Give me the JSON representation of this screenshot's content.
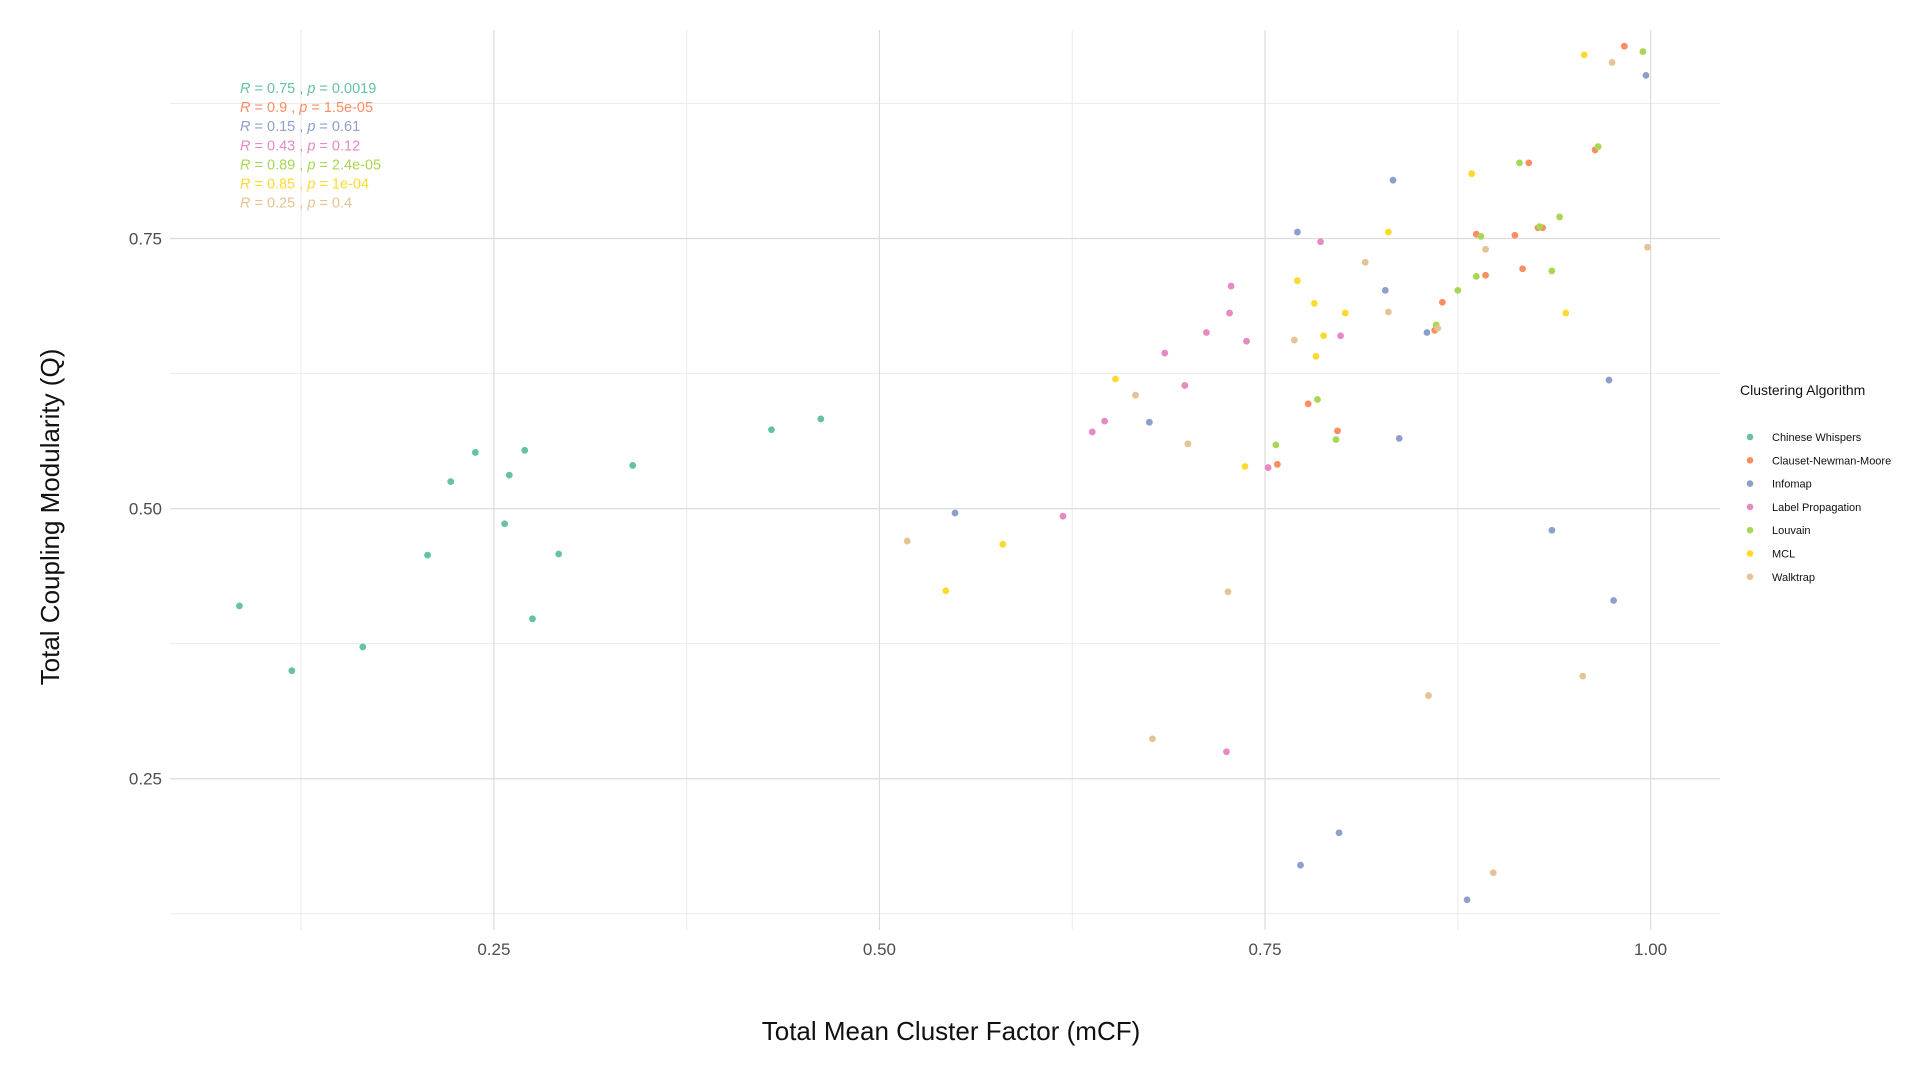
{
  "chart_data": {
    "type": "scatter",
    "title": "",
    "xlabel": "Total Mean Cluster Factor (mCF)",
    "ylabel": "Total Coupling Modularity (Q)",
    "xlim": [
      0.04,
      1.045
    ],
    "ylim": [
      0.11,
      0.943
    ],
    "x_ticks": [
      0.25,
      0.5,
      0.75,
      1.0
    ],
    "x_tick_labels": [
      "0.25",
      "0.50",
      "0.75",
      "1.00"
    ],
    "y_ticks": [
      0.25,
      0.5,
      0.75
    ],
    "y_tick_labels": [
      "0.25",
      "0.50",
      "0.75"
    ],
    "grid": true,
    "legend": {
      "title": "Clustering Algorithm",
      "placement": "right"
    },
    "correlations": [
      {
        "R": "0.75",
        "p": "0.0019"
      },
      {
        "R": "0.9",
        "p": "1.5e-05"
      },
      {
        "R": "0.15",
        "p": "0.61"
      },
      {
        "R": "0.43",
        "p": "0.12"
      },
      {
        "R": "0.89",
        "p": "2.4e-05"
      },
      {
        "R": "0.85",
        "p": "1e-04"
      },
      {
        "R": "0.25",
        "p": "0.4"
      }
    ],
    "series": [
      {
        "name": "Chinese Whispers",
        "color": "#66c2a5",
        "points": [
          [
            0.085,
            0.41
          ],
          [
            0.119,
            0.35
          ],
          [
            0.165,
            0.372
          ],
          [
            0.207,
            0.457
          ],
          [
            0.222,
            0.525
          ],
          [
            0.238,
            0.552
          ],
          [
            0.257,
            0.486
          ],
          [
            0.26,
            0.531
          ],
          [
            0.27,
            0.554
          ],
          [
            0.275,
            0.398
          ],
          [
            0.292,
            0.458
          ],
          [
            0.34,
            0.54
          ],
          [
            0.43,
            0.573
          ],
          [
            0.462,
            0.583
          ]
        ]
      },
      {
        "name": "Clauset-Newman-Moore",
        "color": "#fc8d62",
        "points": [
          [
            0.983,
            0.928
          ],
          [
            0.964,
            0.832
          ],
          [
            0.921,
            0.82
          ],
          [
            0.927,
            0.76
          ],
          [
            0.93,
            0.76
          ],
          [
            0.912,
            0.753
          ],
          [
            0.887,
            0.754
          ],
          [
            0.917,
            0.722
          ],
          [
            0.893,
            0.716
          ],
          [
            0.865,
            0.691
          ],
          [
            0.86,
            0.665
          ],
          [
            0.778,
            0.597
          ],
          [
            0.797,
            0.572
          ],
          [
            0.758,
            0.541
          ]
        ]
      },
      {
        "name": "Infomap",
        "color": "#8da0cb",
        "points": [
          [
            0.997,
            0.901
          ],
          [
            0.833,
            0.804
          ],
          [
            0.771,
            0.756
          ],
          [
            0.828,
            0.702
          ],
          [
            0.855,
            0.663
          ],
          [
            0.973,
            0.619
          ],
          [
            0.837,
            0.565
          ],
          [
            0.675,
            0.58
          ],
          [
            0.549,
            0.496
          ],
          [
            0.936,
            0.48
          ],
          [
            0.976,
            0.415
          ],
          [
            0.798,
            0.2
          ],
          [
            0.773,
            0.17
          ],
          [
            0.881,
            0.138
          ]
        ]
      },
      {
        "name": "Label Propagation",
        "color": "#e78ac3",
        "points": [
          [
            0.786,
            0.747
          ],
          [
            0.728,
            0.706
          ],
          [
            0.727,
            0.681
          ],
          [
            0.712,
            0.663
          ],
          [
            0.738,
            0.655
          ],
          [
            0.799,
            0.66
          ],
          [
            0.685,
            0.644
          ],
          [
            0.698,
            0.614
          ],
          [
            0.646,
            0.581
          ],
          [
            0.638,
            0.571
          ],
          [
            0.752,
            0.538
          ],
          [
            0.619,
            0.493
          ],
          [
            0.725,
            0.275
          ]
        ]
      },
      {
        "name": "Louvain",
        "color": "#a6d854",
        "points": [
          [
            0.995,
            0.923
          ],
          [
            0.966,
            0.835
          ],
          [
            0.915,
            0.82
          ],
          [
            0.941,
            0.77
          ],
          [
            0.928,
            0.761
          ],
          [
            0.89,
            0.752
          ],
          [
            0.936,
            0.72
          ],
          [
            0.887,
            0.715
          ],
          [
            0.875,
            0.702
          ],
          [
            0.861,
            0.67
          ],
          [
            0.784,
            0.601
          ],
          [
            0.796,
            0.564
          ],
          [
            0.757,
            0.559
          ]
        ]
      },
      {
        "name": "MCL",
        "color": "#ffd92f",
        "points": [
          [
            0.957,
            0.92
          ],
          [
            0.884,
            0.81
          ],
          [
            0.83,
            0.756
          ],
          [
            0.771,
            0.711
          ],
          [
            0.782,
            0.69
          ],
          [
            0.802,
            0.681
          ],
          [
            0.945,
            0.681
          ],
          [
            0.788,
            0.66
          ],
          [
            0.783,
            0.641
          ],
          [
            0.653,
            0.62
          ],
          [
            0.737,
            0.539
          ],
          [
            0.58,
            0.467
          ],
          [
            0.543,
            0.424
          ]
        ]
      },
      {
        "name": "Walktrap",
        "color": "#e5c494",
        "points": [
          [
            0.975,
            0.913
          ],
          [
            0.998,
            0.742
          ],
          [
            0.893,
            0.74
          ],
          [
            0.815,
            0.728
          ],
          [
            0.83,
            0.682
          ],
          [
            0.862,
            0.667
          ],
          [
            0.769,
            0.656
          ],
          [
            0.666,
            0.605
          ],
          [
            0.7,
            0.56
          ],
          [
            0.518,
            0.47
          ],
          [
            0.726,
            0.423
          ],
          [
            0.956,
            0.345
          ],
          [
            0.856,
            0.327
          ],
          [
            0.677,
            0.287
          ],
          [
            0.898,
            0.163
          ]
        ]
      }
    ]
  }
}
